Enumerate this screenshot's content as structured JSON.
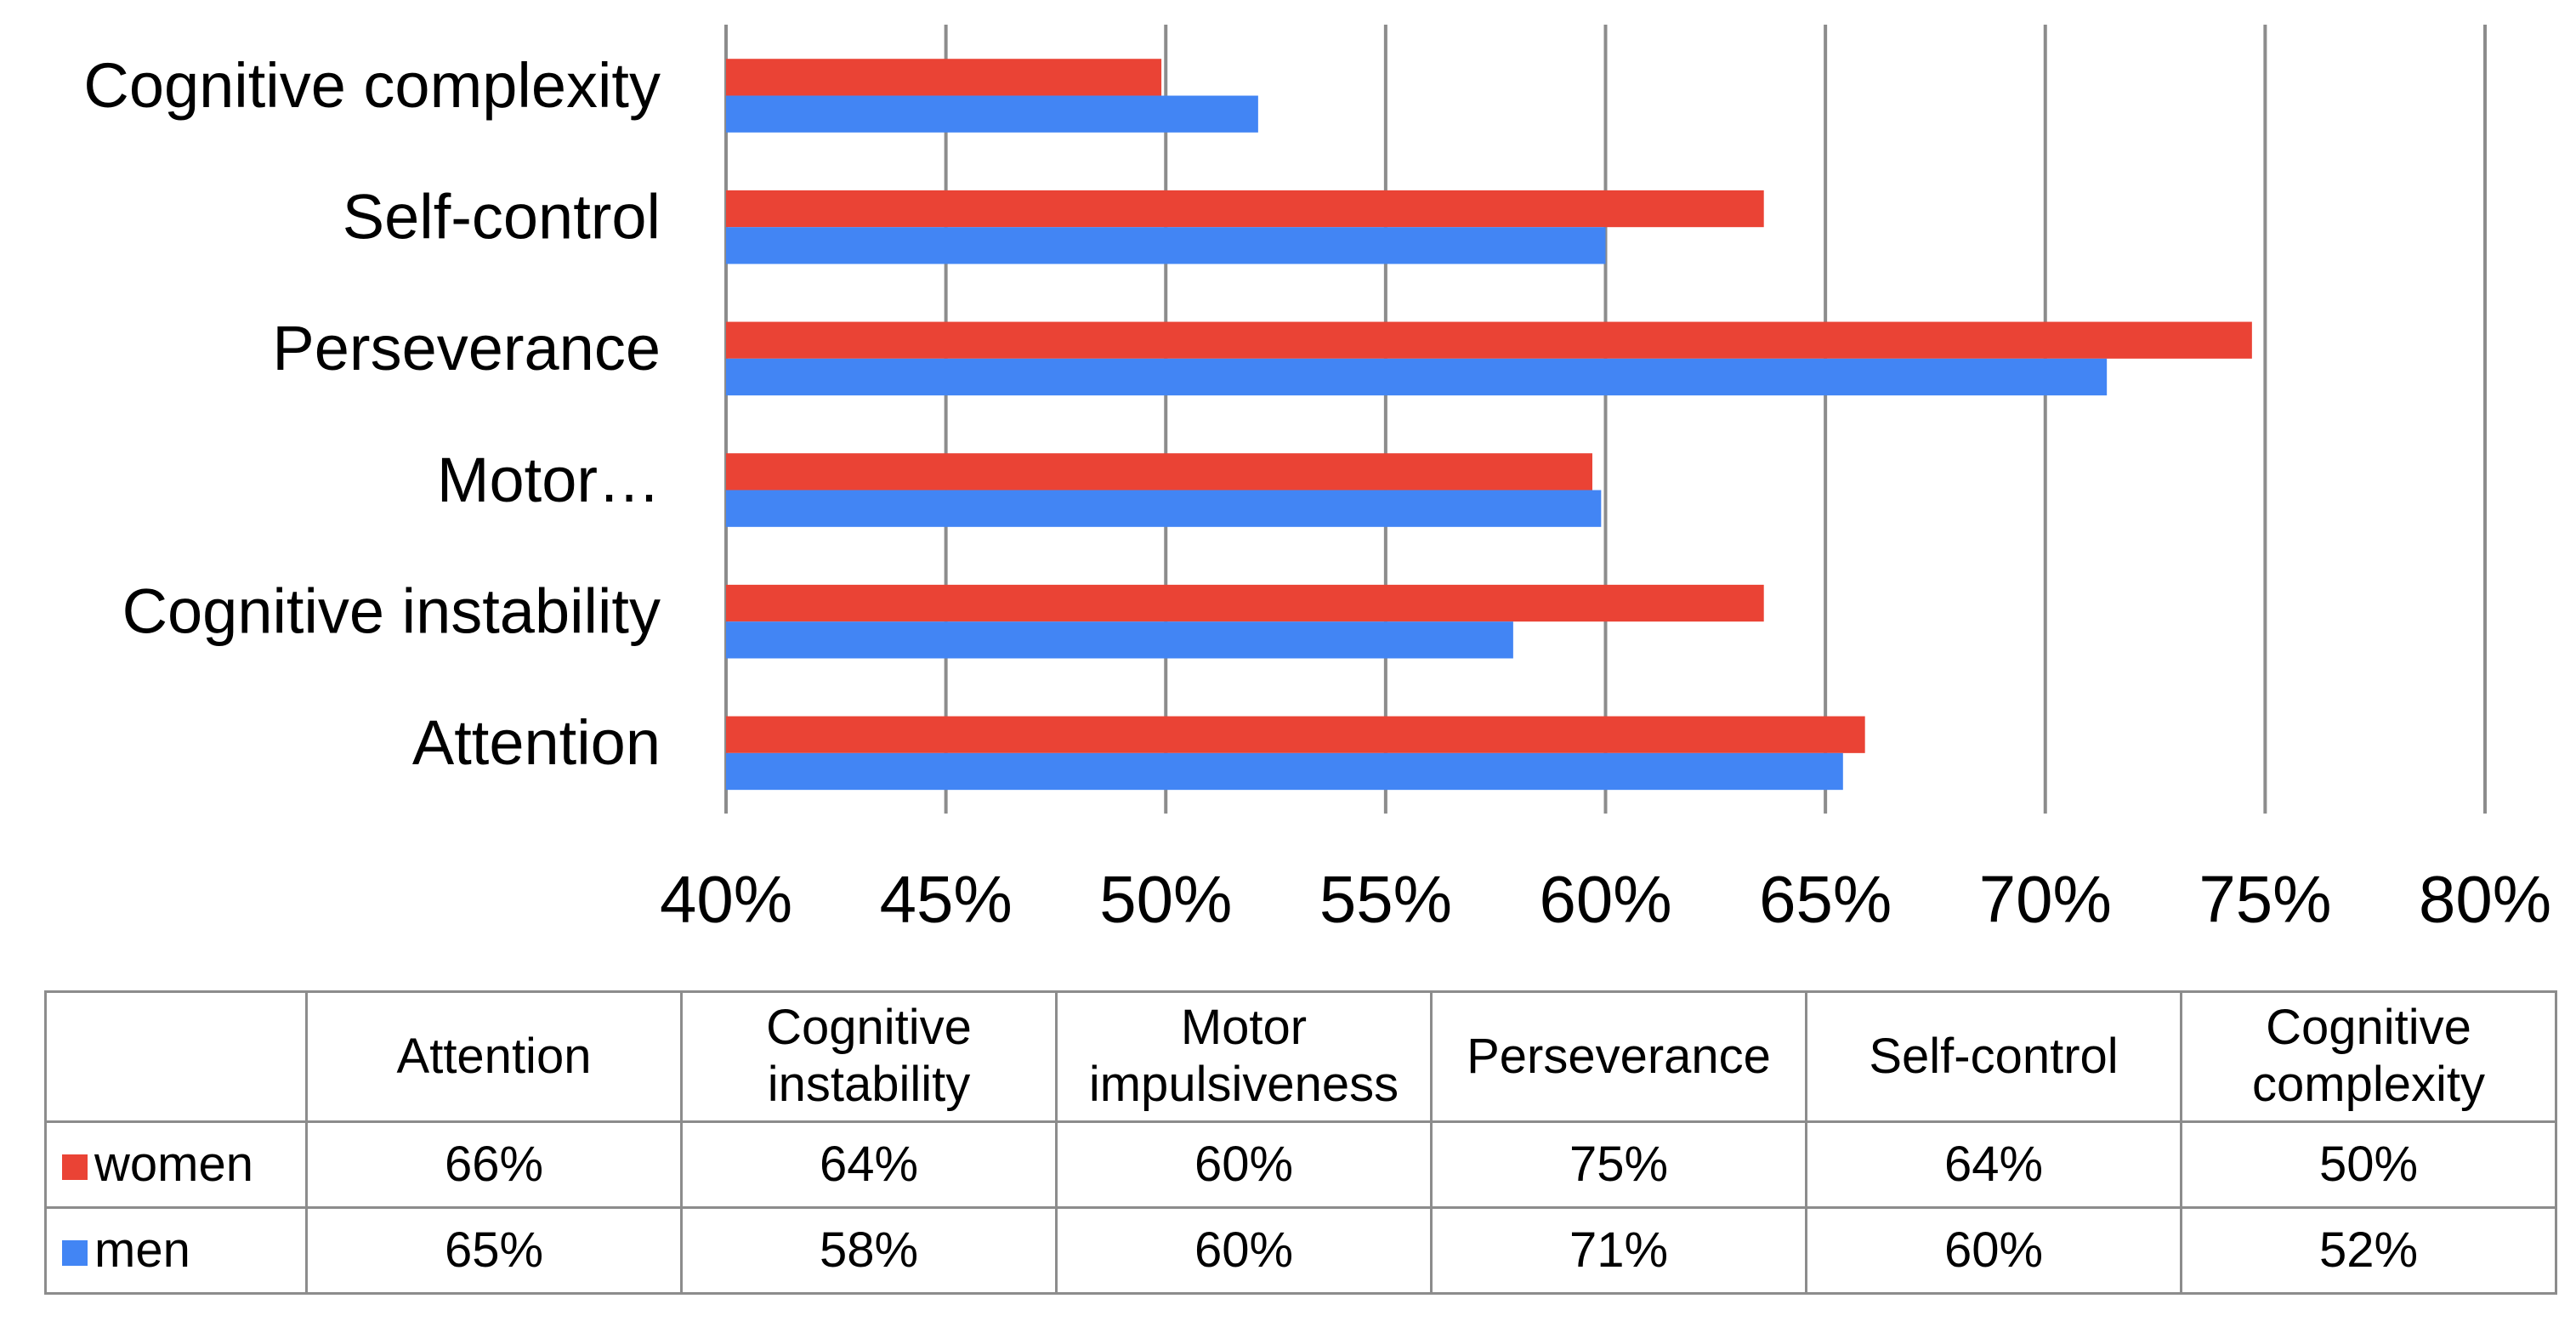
{
  "chart_data": {
    "type": "bar",
    "orientation": "horizontal",
    "categories": [
      "Attention",
      "Cognitive instability",
      "Motor impulsiveness",
      "Perseverance",
      "Self-control",
      "Cognitive complexity"
    ],
    "axis_category_labels": [
      "Attention",
      "Cognitive instability",
      "Motor…",
      "Perseverance",
      "Self-control",
      "Cognitive complexity"
    ],
    "series": [
      {
        "name": "women",
        "color": "#ea4335",
        "values": [
          65.9,
          63.6,
          59.7,
          74.7,
          63.6,
          49.9
        ],
        "value_labels": [
          "66%",
          "64%",
          "60%",
          "75%",
          "64%",
          "50%"
        ]
      },
      {
        "name": "men",
        "color": "#4285f4",
        "values": [
          65.4,
          57.9,
          59.9,
          71.4,
          60.0,
          52.1
        ],
        "value_labels": [
          "65%",
          "58%",
          "60%",
          "71%",
          "60%",
          "52%"
        ]
      }
    ],
    "xlim": [
      40,
      80
    ],
    "xticks": [
      {
        "value": 40,
        "label": "40%"
      },
      {
        "value": 45,
        "label": "45%"
      },
      {
        "value": 50,
        "label": "50%"
      },
      {
        "value": 55,
        "label": "55%"
      },
      {
        "value": 60,
        "label": "60%"
      },
      {
        "value": 65,
        "label": "65%"
      },
      {
        "value": 70,
        "label": "70%"
      },
      {
        "value": 75,
        "label": "75%"
      },
      {
        "value": 80,
        "label": "80%"
      }
    ],
    "grid": true
  }
}
